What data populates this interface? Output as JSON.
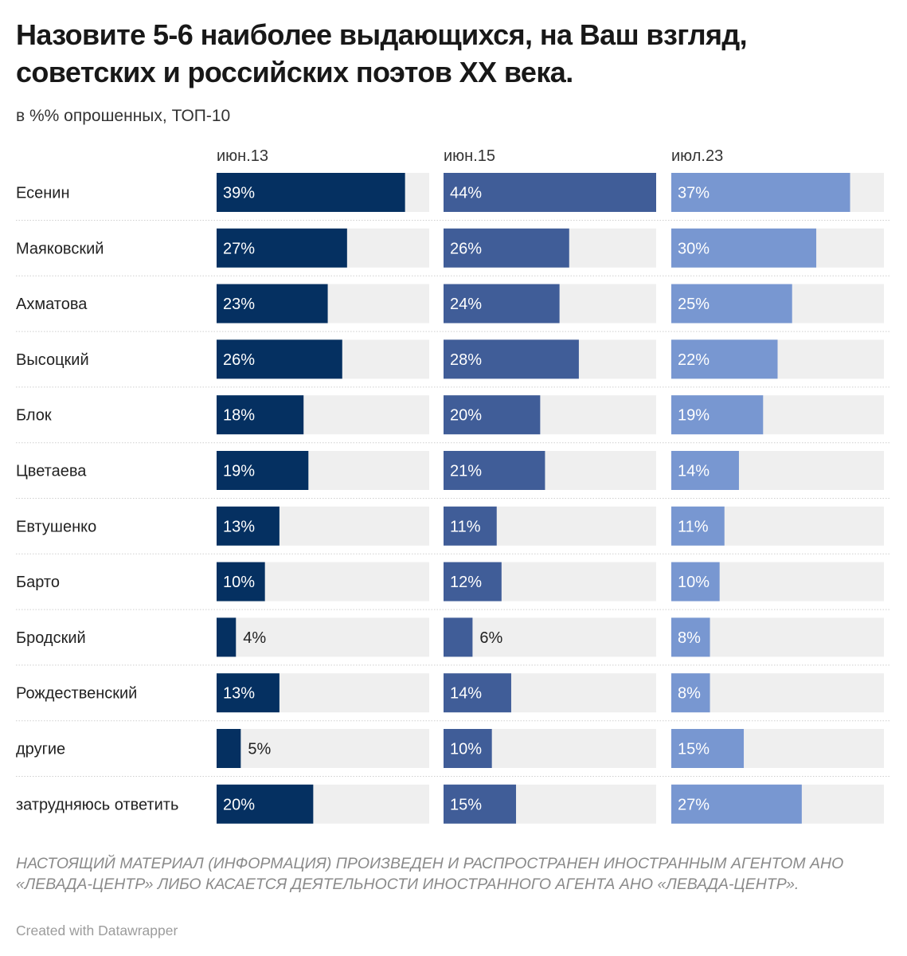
{
  "title": "Назовите 5-6 наиболее выдающихся, на Ваш взгляд, советских и российских поэтов XX века.",
  "subtitle": "в %% опрошенных, ТОП-10",
  "note": "НАСТОЯЩИЙ МАТЕРИАЛ (ИНФОРМАЦИЯ) ПРОИЗВЕДЕН И РАСПРОСТРАНЕН ИНОСТРАННЫМ АГЕНТОМ АНО «ЛЕВАДА-ЦЕНТР» ЛИБО КАСАЕТСЯ ДЕЯТЕЛЬНОСТИ ИНОСТРАННОГО АГЕНТА АНО «ЛЕВАДА-ЦЕНТР».",
  "credit": "Created with Datawrapper",
  "colors": {
    "background_bar": "#efefef",
    "series": [
      "#053061",
      "#405d98",
      "#7897d1"
    ],
    "label_inside": "#ffffff",
    "label_outside": "#222222",
    "row_separator": "#cfcfcf"
  },
  "chart_data": {
    "type": "bar",
    "orientation": "horizontal",
    "layout": "small-multiples",
    "categories": [
      "Есенин",
      "Маяковский",
      "Ахматова",
      "Высоцкий",
      "Блок",
      "Цветаева",
      "Евтушенко",
      "Барто",
      "Бродский",
      "Рождественский",
      "другие",
      "затрудняюсь ответить"
    ],
    "series": [
      {
        "name": "июн.13",
        "values": [
          39,
          27,
          23,
          26,
          18,
          19,
          13,
          10,
          4,
          13,
          5,
          20
        ]
      },
      {
        "name": "июн.15",
        "values": [
          44,
          26,
          24,
          28,
          20,
          21,
          11,
          12,
          6,
          14,
          10,
          15
        ]
      },
      {
        "name": "июл.23",
        "values": [
          37,
          30,
          25,
          22,
          19,
          14,
          11,
          10,
          8,
          8,
          15,
          27
        ]
      }
    ],
    "value_suffix": "%",
    "xlim": [
      0,
      44
    ],
    "grid": false
  }
}
